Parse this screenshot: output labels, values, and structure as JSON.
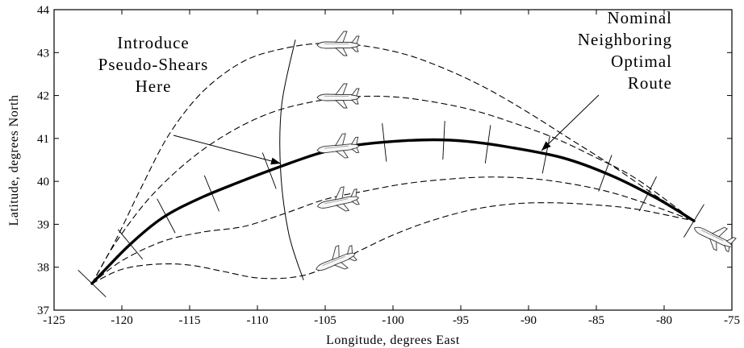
{
  "chart_data": {
    "type": "line",
    "xlabel": "Longitude, degrees East",
    "ylabel": "Latitude, degrees North",
    "xlim": [
      -125,
      -75
    ],
    "ylim": [
      37,
      44
    ],
    "xticks": [
      -125,
      -120,
      -115,
      -110,
      -105,
      -100,
      -95,
      -90,
      -85,
      -80,
      -75
    ],
    "yticks": [
      37,
      38,
      39,
      40,
      41,
      42,
      43,
      44
    ],
    "xtick_labels": [
      "-125",
      "-120",
      "-115",
      "-110",
      "-105",
      "-100",
      "-95",
      "-90",
      "-85",
      "-80",
      "-75"
    ],
    "ytick_labels": [
      "37",
      "38",
      "39",
      "40",
      "41",
      "42",
      "43",
      "44"
    ],
    "grid": false,
    "series": [
      {
        "style": "solid-thick",
        "x": [
          -122.2,
          -119.5,
          -117,
          -114.3,
          -111.2,
          -108,
          -105.5,
          -103.2,
          -100,
          -97,
          -94.5,
          -91.5,
          -87.5,
          -84,
          -80.5,
          -77.8
        ],
        "y": [
          37.62,
          38.5,
          39.15,
          39.6,
          40.0,
          40.38,
          40.65,
          40.82,
          40.93,
          40.97,
          40.93,
          40.8,
          40.55,
          40.15,
          39.6,
          39.08
        ]
      },
      {
        "style": "dashed",
        "x": [
          -122.2,
          -120.5,
          -118.5,
          -116.5,
          -114,
          -111,
          -108,
          -105,
          -102,
          -99,
          -96,
          -93,
          -90,
          -87,
          -84,
          -81,
          -77.8
        ],
        "y": [
          37.62,
          38.6,
          39.9,
          41.1,
          42.1,
          42.8,
          43.1,
          43.22,
          43.15,
          42.95,
          42.6,
          42.15,
          41.6,
          41.0,
          40.4,
          39.75,
          39.08
        ]
      },
      {
        "style": "dashed",
        "x": [
          -122.2,
          -120.5,
          -118,
          -115,
          -112,
          -109,
          -106,
          -103,
          -100,
          -97,
          -94,
          -91,
          -88,
          -85,
          -82,
          -77.8
        ],
        "y": [
          37.62,
          38.55,
          39.6,
          40.5,
          41.15,
          41.6,
          41.85,
          41.97,
          41.97,
          41.85,
          41.65,
          41.35,
          41.0,
          40.55,
          40.05,
          39.08
        ]
      },
      {
        "style": "dashed",
        "x": [
          -122.2,
          -120,
          -117,
          -114,
          -111,
          -108,
          -105,
          -102,
          -99,
          -96,
          -93,
          -90,
          -87,
          -84,
          -81,
          -77.8
        ],
        "y": [
          37.62,
          38.15,
          38.6,
          38.82,
          38.95,
          39.25,
          39.58,
          39.78,
          39.95,
          40.05,
          40.1,
          40.07,
          39.95,
          39.75,
          39.45,
          39.08
        ]
      },
      {
        "style": "dashed",
        "x": [
          -122.2,
          -120,
          -117.5,
          -115,
          -112.5,
          -110,
          -107.5,
          -105.5,
          -103,
          -100,
          -97,
          -94,
          -91,
          -88,
          -85,
          -82,
          -77.8
        ],
        "y": [
          37.62,
          37.95,
          38.07,
          38.05,
          37.9,
          37.75,
          37.76,
          37.92,
          38.3,
          38.75,
          39.1,
          39.35,
          39.48,
          39.5,
          39.45,
          39.35,
          39.08
        ]
      }
    ],
    "annotations": [
      {
        "text": "Introduce Pseudo-Shears Here",
        "lines": [
          "Introduce",
          "Pseudo-Shears",
          "Here"
        ]
      },
      {
        "text": "Nominal Neighboring Optimal Route",
        "lines": [
          "Nominal",
          "Neighboring",
          "Optimal",
          "Route"
        ]
      }
    ]
  }
}
